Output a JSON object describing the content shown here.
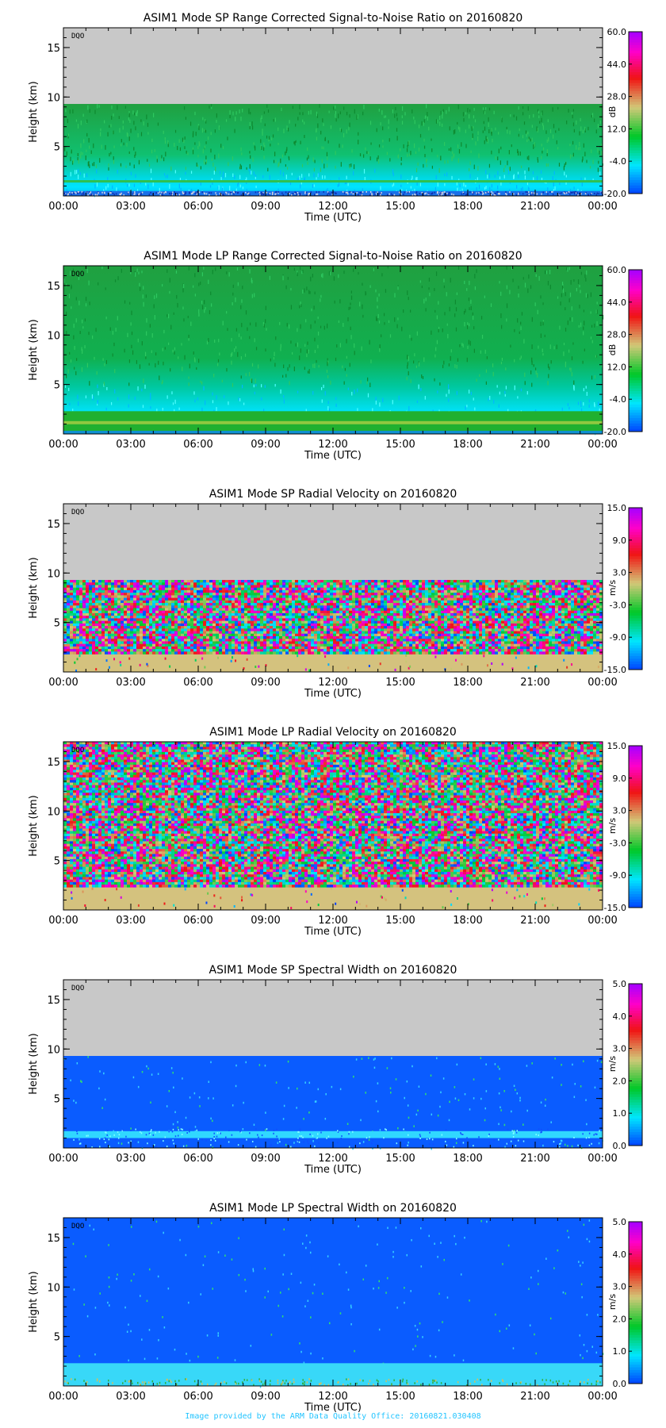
{
  "figure": {
    "footer": "Image provided by the ARM Data Quality Office: 20160821.030408",
    "colors": {
      "missing": "#c8c8c8",
      "axis": "#000000",
      "footer": "#22c4ff"
    }
  },
  "chart_data": [
    {
      "type": "heatmap",
      "title": "ASIM1 Mode SP Range Corrected Signal-to-Noise Ratio on 20160820",
      "xlabel": "Time (UTC)",
      "ylabel": "Height (km)",
      "x_ticks": [
        "00:00",
        "03:00",
        "06:00",
        "09:00",
        "12:00",
        "15:00",
        "18:00",
        "21:00",
        "00:00"
      ],
      "y_ticks": [
        5,
        10,
        15
      ],
      "ylim": [
        0,
        17
      ],
      "annotation": "DQO",
      "colorbar": {
        "unit": "dB",
        "ticks": [
          "60.0",
          "44.0",
          "28.0",
          "12.0",
          "-4.0",
          "-20.0"
        ],
        "range": [
          -20,
          60
        ]
      },
      "data_top_km": 9.3,
      "description_layers": [
        {
          "from_km": 0,
          "to_km": 0.5,
          "level": "mixed low"
        },
        {
          "from_km": 0.5,
          "to_km": 2.0,
          "level": "cyan"
        },
        {
          "from_km": 2.0,
          "to_km": 9.3,
          "level": "green"
        }
      ]
    },
    {
      "type": "heatmap",
      "title": "ASIM1 Mode LP Range Corrected Signal-to-Noise Ratio on 20160820",
      "xlabel": "Time (UTC)",
      "ylabel": "Height (km)",
      "x_ticks": [
        "00:00",
        "03:00",
        "06:00",
        "09:00",
        "12:00",
        "15:00",
        "18:00",
        "21:00",
        "00:00"
      ],
      "y_ticks": [
        5,
        10,
        15
      ],
      "ylim": [
        0,
        17
      ],
      "annotation": "DQO",
      "colorbar": {
        "unit": "dB",
        "ticks": [
          "60.0",
          "44.0",
          "28.0",
          "12.0",
          "-4.0",
          "-20.0"
        ],
        "range": [
          -20,
          60
        ]
      },
      "data_top_km": 17,
      "description_layers": [
        {
          "from_km": 0,
          "to_km": 2.3,
          "level": "green band"
        },
        {
          "from_km": 2.3,
          "to_km": 5,
          "level": "cyan"
        },
        {
          "from_km": 5,
          "to_km": 17,
          "level": "green"
        }
      ]
    },
    {
      "type": "heatmap",
      "title": "ASIM1 Mode SP Radial Velocity  on 20160820",
      "xlabel": "Time (UTC)",
      "ylabel": "Height (km)",
      "x_ticks": [
        "00:00",
        "03:00",
        "06:00",
        "09:00",
        "12:00",
        "15:00",
        "18:00",
        "21:00",
        "00:00"
      ],
      "y_ticks": [
        5,
        10,
        15
      ],
      "ylim": [
        0,
        17
      ],
      "annotation": "DQO",
      "colorbar": {
        "unit": "m/s",
        "ticks": [
          "15.0",
          "9.0",
          "3.0",
          "-3.0",
          "-9.0",
          "-15.0"
        ],
        "range": [
          -15,
          15
        ]
      },
      "data_top_km": 9.3,
      "description_layers": [
        {
          "from_km": 0,
          "to_km": 1.8,
          "level": "near zero (tan)"
        },
        {
          "from_km": 1.8,
          "to_km": 9.3,
          "level": "noise"
        }
      ]
    },
    {
      "type": "heatmap",
      "title": "ASIM1 Mode LP Radial Velocity  on 20160820",
      "xlabel": "Time (UTC)",
      "ylabel": "Height (km)",
      "x_ticks": [
        "00:00",
        "03:00",
        "06:00",
        "09:00",
        "12:00",
        "15:00",
        "18:00",
        "21:00",
        "00:00"
      ],
      "y_ticks": [
        5,
        10,
        15
      ],
      "ylim": [
        0,
        17
      ],
      "annotation": "DQO",
      "colorbar": {
        "unit": "m/s",
        "ticks": [
          "15.0",
          "9.0",
          "3.0",
          "-3.0",
          "-9.0",
          "-15.0"
        ],
        "range": [
          -15,
          15
        ]
      },
      "data_top_km": 17,
      "description_layers": [
        {
          "from_km": 0,
          "to_km": 2.3,
          "level": "near zero (tan)"
        },
        {
          "from_km": 2.3,
          "to_km": 17,
          "level": "noise"
        }
      ]
    },
    {
      "type": "heatmap",
      "title": "ASIM1 Mode SP Spectral Width  on 20160820",
      "xlabel": "Time (UTC)",
      "ylabel": "Height (km)",
      "x_ticks": [
        "00:00",
        "03:00",
        "06:00",
        "09:00",
        "12:00",
        "15:00",
        "18:00",
        "21:00",
        "00:00"
      ],
      "y_ticks": [
        5,
        10,
        15
      ],
      "ylim": [
        0,
        17
      ],
      "annotation": "DQO",
      "colorbar": {
        "unit": "m/s",
        "ticks": [
          "5.0",
          "4.0",
          "3.0",
          "2.0",
          "1.0",
          "0.0"
        ],
        "range": [
          0,
          5
        ]
      },
      "data_top_km": 9.3,
      "description_layers": [
        {
          "from_km": 0,
          "to_km": 2.0,
          "level": "low with cyan band"
        },
        {
          "from_km": 2.0,
          "to_km": 9.3,
          "level": "low (blue)"
        }
      ]
    },
    {
      "type": "heatmap",
      "title": "ASIM1 Mode LP Spectral Width  on 20160820",
      "xlabel": "Time (UTC)",
      "ylabel": "Height (km)",
      "x_ticks": [
        "00:00",
        "03:00",
        "06:00",
        "09:00",
        "12:00",
        "15:00",
        "18:00",
        "21:00",
        "00:00"
      ],
      "y_ticks": [
        5,
        10,
        15
      ],
      "ylim": [
        0,
        17
      ],
      "annotation": "DQO",
      "colorbar": {
        "unit": "m/s",
        "ticks": [
          "5.0",
          "4.0",
          "3.0",
          "2.0",
          "1.0",
          "0.0"
        ],
        "range": [
          0,
          5
        ]
      },
      "data_top_km": 17,
      "description_layers": [
        {
          "from_km": 0,
          "to_km": 2.3,
          "level": "cyan band"
        },
        {
          "from_km": 2.3,
          "to_km": 17,
          "level": "low (blue)"
        }
      ]
    }
  ]
}
